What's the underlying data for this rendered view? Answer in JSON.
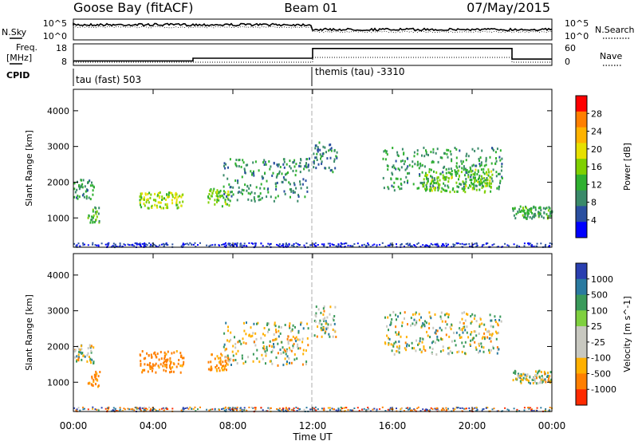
{
  "header": {
    "station": "Goose Bay (fitACF)",
    "beam": "Beam 01",
    "date": "07/May/2015"
  },
  "noise_panel": {
    "left_label": "N.Sky",
    "left_ticks": [
      "10^5",
      "10^0"
    ],
    "right_label": "N.Search",
    "right_ticks": [
      "10^5",
      "10^0"
    ]
  },
  "freq_panel": {
    "left_label_line1": "Freq.",
    "left_label_line2": "[MHz]",
    "left_ticks": [
      "18",
      "8"
    ],
    "right_label": "Nave",
    "right_ticks": [
      "60",
      "0"
    ]
  },
  "cpid_panel": {
    "label": "CPID",
    "entries": [
      "tau (fast) 503",
      "themis (tau) -3310"
    ]
  },
  "x_axis": {
    "label": "Time UT",
    "ticks": [
      "00:00",
      "04:00",
      "08:00",
      "12:00",
      "16:00",
      "20:00",
      "00:00"
    ]
  },
  "y_axis": {
    "label": "Slant Range [km]",
    "ticks": [
      "1000",
      "2000",
      "3000",
      "4000"
    ]
  },
  "power_colorbar": {
    "label": "Power [dB]",
    "ticks": [
      "28",
      "24",
      "20",
      "16",
      "12",
      "8",
      "4"
    ],
    "colors": [
      "#ff0000",
      "#ff7f00",
      "#ffb300",
      "#e7e000",
      "#7fd000",
      "#2fb030",
      "#3a8a6a",
      "#2a4fa0",
      "#0000ff"
    ]
  },
  "velocity_colorbar": {
    "label": "Velocity [m s^-1]",
    "ticks": [
      "1000",
      "500",
      "100",
      "25",
      "-25",
      "-100",
      "-500",
      "-1000"
    ],
    "colors": [
      "#2a3fb0",
      "#2a7aa0",
      "#3a9a5a",
      "#7fd03f",
      "#c8c8c0",
      "#c8c8c0",
      "#ffb000",
      "#ff7f00",
      "#ff2a00"
    ]
  },
  "chart_data": {
    "type": "heatmap",
    "title": "Goose Bay (fitACF)",
    "x_label": "Time UT",
    "y_label": "Slant Range [km]",
    "x_range_hours": [
      0,
      24
    ],
    "y_range_km": [
      180,
      4600
    ],
    "cpid_change_hour": 12,
    "frequency_mhz": [
      {
        "from": 0,
        "to": 6,
        "value": 10
      },
      {
        "from": 6,
        "to": 12,
        "value": 11.5
      },
      {
        "from": 12,
        "to": 22,
        "value": 16.8
      },
      {
        "from": 22,
        "to": 24,
        "value": 11
      }
    ],
    "power_regions_db": [
      {
        "t0": 0.0,
        "t1": 1.0,
        "r0": 1550,
        "r1": 2100,
        "level": 9
      },
      {
        "t0": 0.7,
        "t1": 1.3,
        "r0": 900,
        "r1": 1350,
        "level": 12
      },
      {
        "t0": 3.3,
        "t1": 5.5,
        "r0": 1300,
        "r1": 1750,
        "level": 16
      },
      {
        "t0": 6.7,
        "t1": 7.8,
        "r0": 1350,
        "r1": 1850,
        "level": 14
      },
      {
        "t0": 7.5,
        "t1": 11.8,
        "r0": 1500,
        "r1": 2700,
        "level": 8
      },
      {
        "t0": 12.0,
        "t1": 13.2,
        "r0": 2300,
        "r1": 3150,
        "level": 7
      },
      {
        "t0": 15.5,
        "t1": 21.5,
        "r0": 1800,
        "r1": 3000,
        "level": 9
      },
      {
        "t0": 17.5,
        "t1": 21.0,
        "r0": 1750,
        "r1": 2400,
        "level": 14
      },
      {
        "t0": 22.0,
        "t1": 24.0,
        "r0": 1000,
        "r1": 1350,
        "level": 10
      }
    ],
    "velocity_regions_ms": [
      {
        "t0": 0.0,
        "t1": 1.0,
        "r0": 1550,
        "r1": 2100,
        "value": 0
      },
      {
        "t0": 0.7,
        "t1": 1.3,
        "r0": 900,
        "r1": 1350,
        "value": -150
      },
      {
        "t0": 3.3,
        "t1": 5.5,
        "r0": 1300,
        "r1": 1900,
        "value": -200
      },
      {
        "t0": 6.7,
        "t1": 7.8,
        "r0": 1350,
        "r1": 1850,
        "value": -150
      },
      {
        "t0": 7.5,
        "t1": 11.8,
        "r0": 1500,
        "r1": 2700,
        "value": 0
      },
      {
        "t0": 12.0,
        "t1": 13.2,
        "r0": 2300,
        "r1": 3150,
        "value": 0
      },
      {
        "t0": 15.5,
        "t1": 21.5,
        "r0": 1800,
        "r1": 3000,
        "value": 0
      },
      {
        "t0": 22.0,
        "t1": 24.0,
        "r0": 1000,
        "r1": 1350,
        "value": 0
      }
    ]
  }
}
